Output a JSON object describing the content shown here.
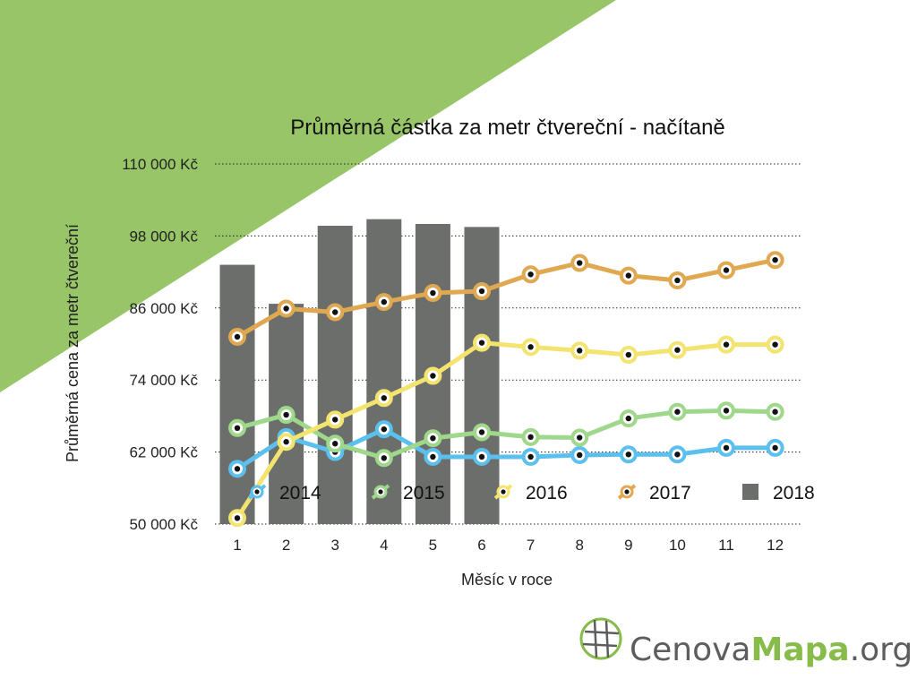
{
  "chart_data": {
    "type": "bar+line",
    "title": "Průměrná částka za metr čtvereční - načítaně",
    "xlabel": "Měsíc v roce",
    "ylabel": "Průměrná cena za metr čtvereční",
    "categories": [
      "1",
      "2",
      "3",
      "4",
      "5",
      "6",
      "7",
      "8",
      "9",
      "10",
      "11",
      "12"
    ],
    "ylim": [
      50000,
      110000
    ],
    "yticks": [
      50000,
      62000,
      74000,
      86000,
      98000,
      110000
    ],
    "ytick_labels": [
      "50 000 Kč",
      "62 000 Kč",
      "74 000 Kč",
      "86 000 Kč",
      "98 000 Kč",
      "110 000 Kč"
    ],
    "grid": "horizontal-dotted",
    "legend_position": "bottom-inside",
    "series": [
      {
        "name": "2018",
        "kind": "bar",
        "color": "#6b6e6b",
        "values": [
          93200,
          86700,
          99700,
          100800,
          100000,
          99500,
          null,
          null,
          null,
          null,
          null,
          null
        ]
      },
      {
        "name": "2014",
        "kind": "line",
        "color": "#5cc0ef",
        "values": [
          59200,
          64500,
          62000,
          65800,
          61200,
          61200,
          61200,
          61500,
          61600,
          61600,
          62700,
          62700
        ]
      },
      {
        "name": "2015",
        "kind": "line",
        "color": "#9fd88b",
        "values": [
          66000,
          68200,
          63400,
          61000,
          64300,
          65300,
          64500,
          64400,
          67600,
          68700,
          68900,
          68700
        ]
      },
      {
        "name": "2016",
        "kind": "line",
        "color": "#f3e470",
        "values": [
          51000,
          63700,
          67400,
          71000,
          74700,
          80200,
          79500,
          78900,
          78200,
          79000,
          79900,
          79900
        ]
      },
      {
        "name": "2017",
        "kind": "line",
        "color": "#e0a850",
        "values": [
          81200,
          85900,
          85300,
          87000,
          88500,
          88800,
          91600,
          93500,
          91400,
          90600,
          92300,
          94000
        ]
      }
    ]
  },
  "brand": {
    "part1": "Cenova",
    "part2": "Mapa",
    "part3": ".org"
  },
  "colors": {
    "triangle": "#97c567",
    "grid": "#222222",
    "marker_dot": "#111111",
    "brand_dark": "#5d5d5d",
    "brand_green": "#88bc4a"
  }
}
